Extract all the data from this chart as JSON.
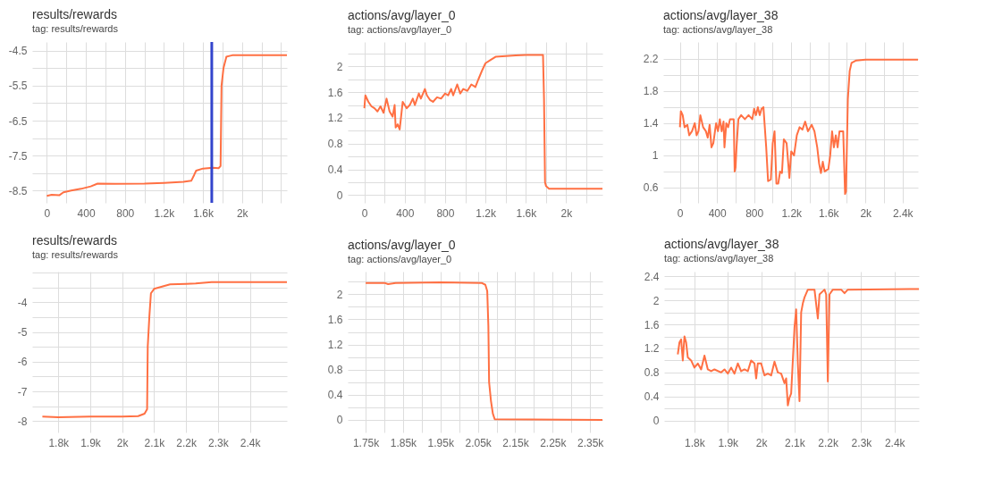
{
  "chart_data": [
    {
      "type": "line",
      "title": "results/rewards",
      "subtitle": "tag: results/rewards",
      "grid": true,
      "xlim": [
        -150,
        2460
      ],
      "xticks": [
        0,
        {
          "value": 200,
          "label": null
        },
        400,
        {
          "value": 600,
          "label": null
        },
        800,
        {
          "value": 1000,
          "label": null
        },
        {
          "value": 1200,
          "label": "1.2k"
        },
        {
          "value": 1400,
          "label": null
        },
        {
          "value": 1600,
          "label": "1.6k"
        },
        {
          "value": 1800,
          "label": null
        },
        {
          "value": 2000,
          "label": "2k"
        },
        {
          "value": 2200,
          "label": null
        },
        {
          "value": 2400,
          "label": null
        }
      ],
      "ylim": [
        -8.85,
        -4.25
      ],
      "yticks": [
        -8.5,
        {
          "value": -8,
          "label": null
        },
        -7.5,
        {
          "value": -7,
          "label": null
        },
        -6.5,
        {
          "value": -6,
          "label": null
        },
        -5.5,
        {
          "value": -5,
          "label": null
        },
        -4.5
      ],
      "ref_lines": [
        {
          "axis": "x",
          "value": 1690,
          "color": "#3344cc"
        }
      ],
      "series": [
        {
          "color": "#ff7043",
          "x": [
            0,
            50,
            130,
            170,
            250,
            350,
            450,
            520,
            700,
            1000,
            1200,
            1400,
            1480,
            1510,
            1530,
            1600,
            1700,
            1760,
            1780,
            1790,
            1810,
            1840,
            1900,
            2460
          ],
          "values": [
            -8.65,
            -8.62,
            -8.63,
            -8.55,
            -8.5,
            -8.45,
            -8.38,
            -8.3,
            -8.31,
            -8.3,
            -8.28,
            -8.25,
            -8.22,
            -8.05,
            -7.93,
            -7.87,
            -7.85,
            -7.86,
            -7.8,
            -5.5,
            -5.0,
            -4.67,
            -4.63,
            -4.63
          ]
        }
      ]
    },
    {
      "type": "line",
      "title": "actions/avg/layer_0",
      "subtitle": "tag: actions/avg/layer_0",
      "grid": true,
      "xlim": [
        -165,
        2359
      ],
      "xticks": [
        0,
        {
          "value": 200,
          "label": null
        },
        400,
        {
          "value": 600,
          "label": null
        },
        800,
        {
          "value": 1000,
          "label": null
        },
        {
          "value": 1200,
          "label": "1.2k"
        },
        {
          "value": 1400,
          "label": null
        },
        {
          "value": 1600,
          "label": "1.6k"
        },
        {
          "value": 1800,
          "label": null
        },
        {
          "value": 2000,
          "label": "2k"
        },
        {
          "value": 2200,
          "label": null
        }
      ],
      "ylim": [
        -0.12,
        2.38
      ],
      "yticks": [
        0,
        {
          "value": 0.2,
          "label": null
        },
        0.4,
        {
          "value": 0.6,
          "label": null
        },
        0.8,
        {
          "value": 1,
          "label": null
        },
        1.2,
        {
          "value": 1.4,
          "label": null
        },
        1.6,
        {
          "value": 1.8,
          "label": null
        },
        2,
        {
          "value": 2.2,
          "label": null
        }
      ],
      "series": [
        {
          "color": "#ff7043",
          "x": [
            0,
            10,
            40,
            70,
            100,
            130,
            160,
            190,
            220,
            250,
            280,
            300,
            310,
            330,
            350,
            380,
            420,
            450,
            480,
            500,
            540,
            560,
            600,
            620,
            650,
            680,
            720,
            760,
            800,
            830,
            860,
            880,
            920,
            950,
            980,
            1020,
            1060,
            1100,
            1130,
            1170,
            1200,
            1250,
            1300,
            1400,
            1500,
            1600,
            1770,
            1780,
            1790,
            1800,
            1830,
            2359
          ],
          "values": [
            1.35,
            1.55,
            1.45,
            1.38,
            1.35,
            1.3,
            1.38,
            1.28,
            1.5,
            1.3,
            1.22,
            1.4,
            1.05,
            1.1,
            1.02,
            1.45,
            1.35,
            1.4,
            1.5,
            1.4,
            1.58,
            1.5,
            1.65,
            1.55,
            1.48,
            1.45,
            1.52,
            1.5,
            1.58,
            1.55,
            1.65,
            1.55,
            1.72,
            1.58,
            1.65,
            1.62,
            1.72,
            1.68,
            1.8,
            1.95,
            2.05,
            2.1,
            2.15,
            2.16,
            2.17,
            2.18,
            2.18,
            1.5,
            0.2,
            0.14,
            0.1,
            0.1
          ]
        }
      ]
    },
    {
      "type": "line",
      "title": "actions/avg/layer_38",
      "subtitle": "tag: actions/avg/layer_38",
      "grid": true,
      "xlim": [
        -180,
        2566
      ],
      "xticks": [
        0,
        {
          "value": 200,
          "label": null
        },
        400,
        {
          "value": 600,
          "label": null
        },
        800,
        {
          "value": 1000,
          "label": null
        },
        {
          "value": 1200,
          "label": "1.2k"
        },
        {
          "value": 1400,
          "label": null
        },
        {
          "value": 1600,
          "label": "1.6k"
        },
        {
          "value": 1800,
          "label": null
        },
        {
          "value": 2000,
          "label": "2k"
        },
        {
          "value": 2200,
          "label": null
        },
        {
          "value": 2400,
          "label": "2.4k"
        }
      ],
      "ylim": [
        0.41,
        2.41
      ],
      "yticks": [
        0.6,
        {
          "value": 0.8,
          "label": null
        },
        1,
        {
          "value": 1.2,
          "label": null
        },
        1.4,
        {
          "value": 1.6,
          "label": null
        },
        1.8,
        {
          "value": 2,
          "label": null
        },
        2.2
      ],
      "series": [
        {
          "color": "#ff7043",
          "x": [
            0,
            10,
            30,
            50,
            80,
            100,
            130,
            160,
            180,
            200,
            220,
            250,
            280,
            300,
            320,
            340,
            360,
            390,
            410,
            430,
            450,
            470,
            480,
            500,
            520,
            540,
            580,
            590,
            600,
            610,
            630,
            660,
            700,
            740,
            780,
            800,
            820,
            840,
            860,
            880,
            900,
            930,
            950,
            980,
            1000,
            1020,
            1040,
            1060,
            1080,
            1100,
            1120,
            1150,
            1180,
            1200,
            1230,
            1260,
            1290,
            1320,
            1350,
            1380,
            1420,
            1450,
            1480,
            1500,
            1520,
            1540,
            1560,
            1600,
            1620,
            1640,
            1660,
            1680,
            1700,
            1720,
            1760,
            1780,
            1790,
            1810,
            1830,
            1850,
            1900,
            2000,
            2566
          ],
          "values": [
            1.35,
            1.55,
            1.5,
            1.35,
            1.38,
            1.25,
            1.3,
            1.4,
            1.25,
            1.3,
            1.5,
            1.35,
            1.3,
            1.22,
            1.38,
            1.1,
            1.15,
            1.4,
            1.3,
            1.45,
            1.3,
            1.42,
            1.1,
            1.4,
            1.35,
            1.45,
            1.45,
            0.8,
            0.85,
            1.1,
            1.45,
            1.5,
            1.45,
            1.5,
            1.45,
            1.58,
            1.5,
            1.6,
            1.5,
            1.58,
            1.6,
            1.1,
            0.68,
            0.7,
            1.15,
            1.3,
            0.65,
            0.65,
            0.8,
            0.78,
            1.2,
            1.15,
            0.72,
            1.05,
            1.0,
            1.25,
            1.35,
            1.32,
            1.42,
            1.3,
            1.38,
            1.3,
            1.1,
            0.9,
            0.78,
            0.92,
            0.8,
            0.83,
            1.0,
            1.3,
            1.1,
            1.25,
            1.1,
            1.3,
            1.3,
            0.52,
            0.55,
            1.7,
            2.05,
            2.15,
            2.18,
            2.19,
            2.19
          ]
        }
      ]
    },
    {
      "type": "line",
      "title": "results/rewards",
      "subtitle": "tag: results/rewards",
      "grid": true,
      "xlim": [
        1718,
        2516
      ],
      "xticks": [
        {
          "value": 1800,
          "label": "1.8k"
        },
        {
          "value": 1900,
          "label": "1.9k"
        },
        {
          "value": 2000,
          "label": "2k"
        },
        {
          "value": 2100,
          "label": "2.1k"
        },
        {
          "value": 2200,
          "label": "2.2k"
        },
        {
          "value": 2300,
          "label": "2.3k"
        },
        {
          "value": 2400,
          "label": "2.4k"
        }
      ],
      "ylim": [
        -8.38,
        -2.97
      ],
      "yticks": [
        -8,
        {
          "value": -7.5,
          "label": null
        },
        -7,
        {
          "value": -6.5,
          "label": null
        },
        -6,
        {
          "value": -5.5,
          "label": null
        },
        -5,
        {
          "value": -4.5,
          "label": null
        },
        -4,
        {
          "value": -3.5,
          "label": null
        },
        {
          "value": -3,
          "label": null
        }
      ],
      "series": [
        {
          "color": "#ff7043",
          "x": [
            1750,
            1800,
            1900,
            2000,
            2050,
            2070,
            2078,
            2080,
            2085,
            2090,
            2100,
            2150,
            2200,
            2230,
            2280,
            2516
          ],
          "values": [
            -7.85,
            -7.87,
            -7.85,
            -7.85,
            -7.83,
            -7.75,
            -7.6,
            -5.5,
            -4.5,
            -3.7,
            -3.55,
            -3.4,
            -3.38,
            -3.37,
            -3.32,
            -3.32
          ]
        }
      ]
    },
    {
      "type": "line",
      "title": "actions/avg/layer_0",
      "subtitle": "tag: actions/avg/layer_0",
      "grid": true,
      "xlim": [
        1702,
        2383
      ],
      "xticks": [
        {
          "value": 1750,
          "label": "1.75k"
        },
        {
          "value": 1800,
          "label": null
        },
        {
          "value": 1850,
          "label": "1.85k"
        },
        {
          "value": 1900,
          "label": null
        },
        {
          "value": 1950,
          "label": "1.95k"
        },
        {
          "value": 2000,
          "label": null
        },
        {
          "value": 2050,
          "label": "2.05k"
        },
        {
          "value": 2100,
          "label": null
        },
        {
          "value": 2150,
          "label": "2.15k"
        },
        {
          "value": 2200,
          "label": null
        },
        {
          "value": 2250,
          "label": "2.25k"
        },
        {
          "value": 2300,
          "label": null
        },
        {
          "value": 2350,
          "label": "2.35k"
        }
      ],
      "ylim": [
        -0.2,
        2.36
      ],
      "yticks": [
        0,
        {
          "value": 0.2,
          "label": null
        },
        0.4,
        {
          "value": 0.6,
          "label": null
        },
        0.8,
        {
          "value": 1,
          "label": null
        },
        1.2,
        {
          "value": 1.4,
          "label": null
        },
        1.6,
        {
          "value": 1.8,
          "label": null
        },
        2,
        {
          "value": 2.2,
          "label": null
        }
      ],
      "series": [
        {
          "color": "#ff7043",
          "x": [
            1750,
            1800,
            1810,
            1830,
            1950,
            2060,
            2070,
            2075,
            2078,
            2080,
            2085,
            2090,
            2095,
            2383
          ],
          "values": [
            2.18,
            2.18,
            2.16,
            2.18,
            2.19,
            2.18,
            2.15,
            2.05,
            1.5,
            0.6,
            0.3,
            0.1,
            0.01,
            0.0
          ]
        }
      ]
    },
    {
      "type": "line",
      "title": "actions/avg/layer_38",
      "subtitle": "tag: actions/avg/layer_38",
      "grid": true,
      "xlim": [
        1709,
        2473
      ],
      "xticks": [
        {
          "value": 1800,
          "label": "1.8k"
        },
        {
          "value": 1900,
          "label": "1.9k"
        },
        {
          "value": 2000,
          "label": "2k"
        },
        {
          "value": 2100,
          "label": "2.1k"
        },
        {
          "value": 2200,
          "label": "2.2k"
        },
        {
          "value": 2300,
          "label": "2.3k"
        },
        {
          "value": 2400,
          "label": "2.4k"
        }
      ],
      "ylim": [
        -0.2,
        2.48
      ],
      "yticks": [
        0,
        {
          "value": 0.2,
          "label": null
        },
        0.4,
        {
          "value": 0.6,
          "label": null
        },
        0.8,
        {
          "value": 1,
          "label": null
        },
        1.2,
        {
          "value": 1.4,
          "label": null
        },
        1.6,
        {
          "value": 1.8,
          "label": null
        },
        2,
        {
          "value": 2.2,
          "label": null
        },
        2.4
      ],
      "series": [
        {
          "color": "#ff7043",
          "x": [
            1750,
            1755,
            1760,
            1765,
            1770,
            1775,
            1780,
            1790,
            1800,
            1810,
            1820,
            1830,
            1840,
            1850,
            1860,
            1880,
            1890,
            1900,
            1910,
            1920,
            1930,
            1940,
            1950,
            1960,
            1970,
            1980,
            1985,
            1990,
            2000,
            2010,
            2020,
            2030,
            2040,
            2050,
            2060,
            2070,
            2075,
            2080,
            2085,
            2090,
            2095,
            2100,
            2105,
            2110,
            2115,
            2120,
            2125,
            2130,
            2140,
            2160,
            2170,
            2175,
            2190,
            2195,
            2200,
            2205,
            2215,
            2240,
            2250,
            2260,
            2473
          ],
          "values": [
            1.1,
            1.3,
            1.35,
            1.0,
            1.4,
            1.3,
            1.05,
            1.0,
            0.88,
            0.95,
            0.85,
            1.08,
            0.85,
            0.82,
            0.85,
            0.8,
            0.85,
            0.78,
            0.88,
            0.78,
            0.95,
            0.82,
            0.85,
            0.82,
            1.0,
            0.95,
            0.7,
            0.95,
            0.95,
            0.75,
            0.78,
            0.75,
            0.98,
            0.8,
            0.78,
            0.62,
            0.7,
            0.25,
            0.38,
            0.45,
            1.0,
            1.55,
            1.85,
            0.95,
            0.32,
            1.8,
            1.95,
            2.05,
            2.18,
            2.18,
            1.7,
            2.1,
            2.18,
            2.1,
            0.65,
            2.1,
            2.18,
            2.18,
            2.12,
            2.18,
            2.19
          ]
        }
      ]
    }
  ]
}
